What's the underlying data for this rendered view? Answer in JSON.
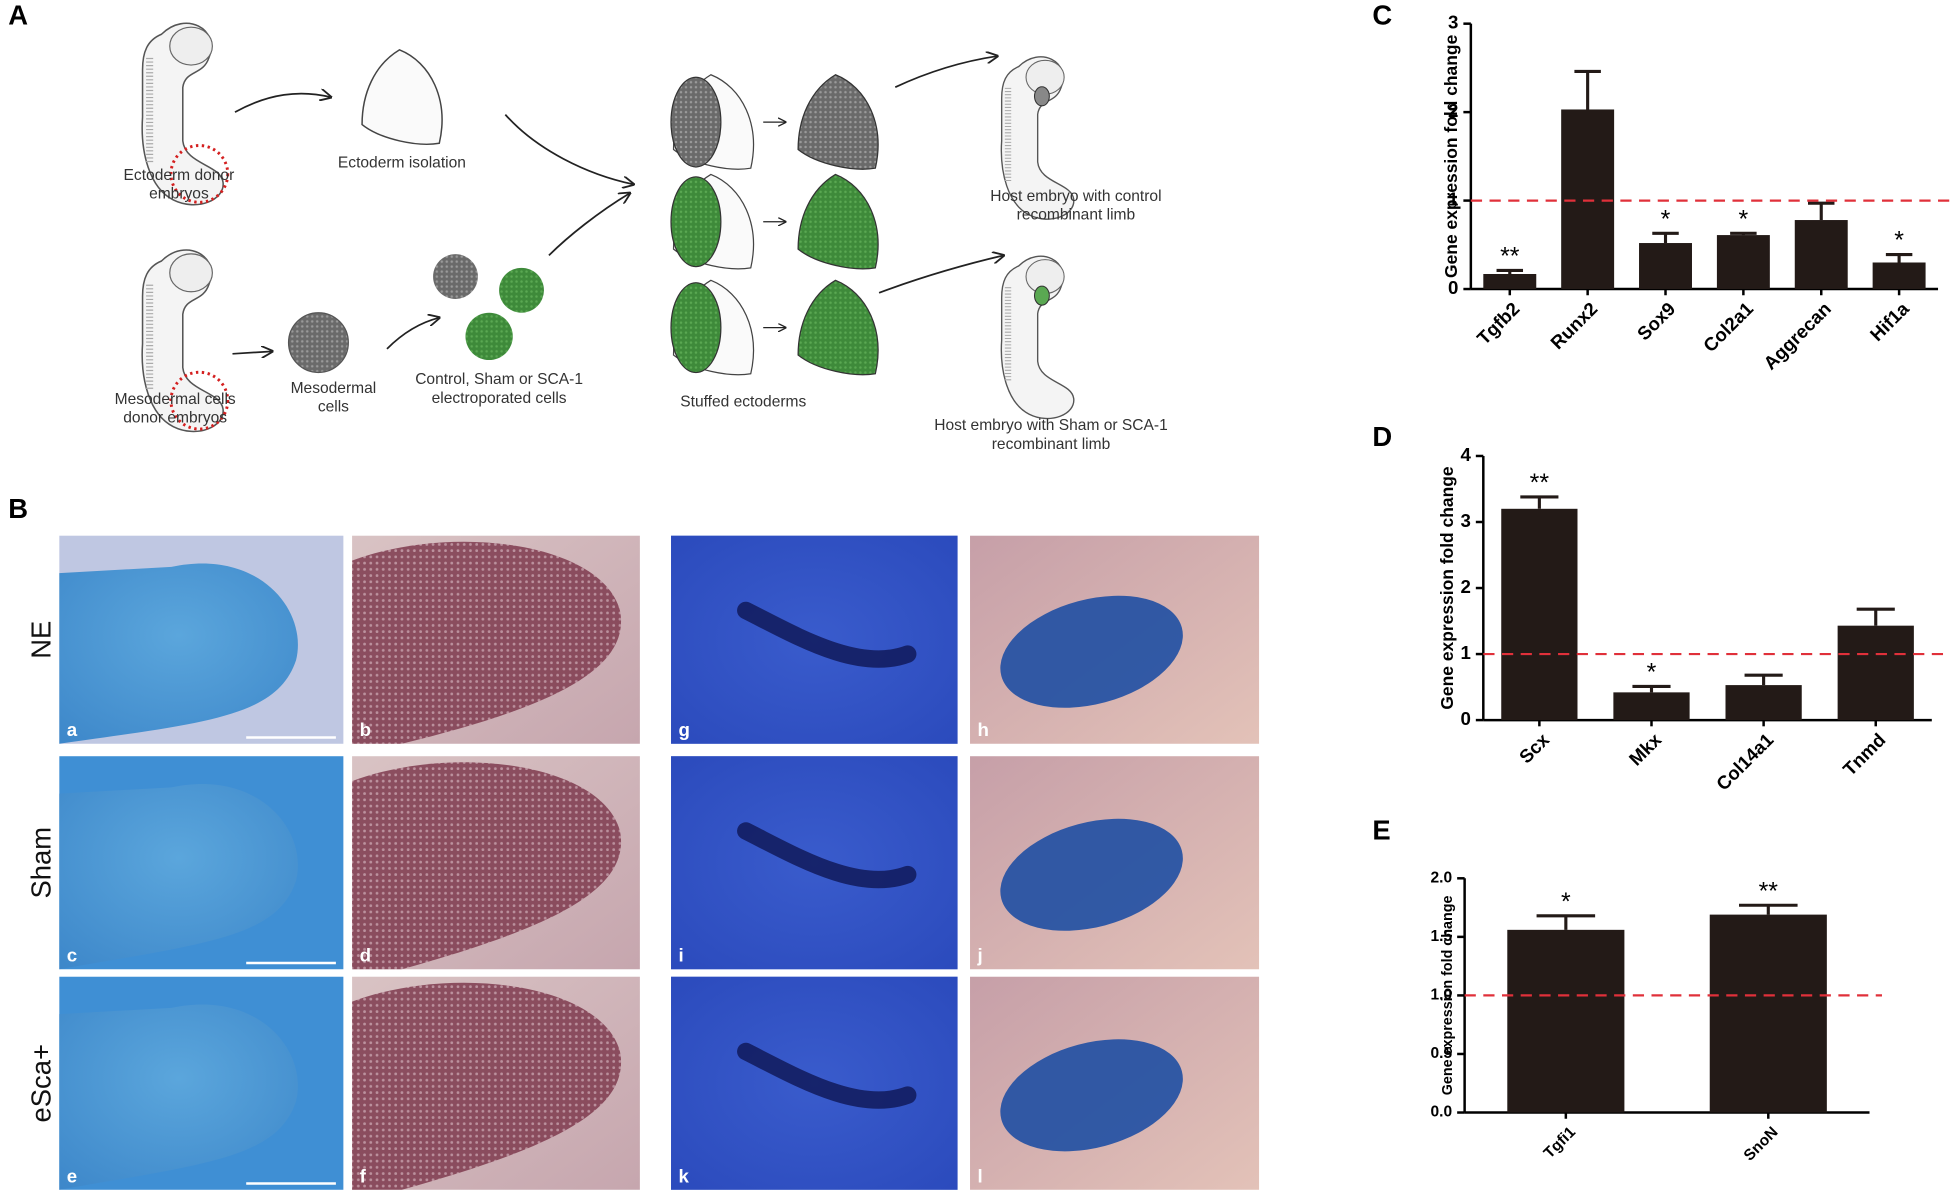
{
  "chart_data": [
    {
      "type": "bar",
      "panel": "C",
      "ylabel": "Gene expression fold change",
      "categories": [
        "Tgfb2",
        "Runx2",
        "Sox9",
        "Col2a1",
        "Aggrecan",
        "Hif1a"
      ],
      "values": [
        0.17,
        2.03,
        0.52,
        0.61,
        0.78,
        0.3
      ],
      "errors": [
        0.04,
        0.43,
        0.11,
        0.02,
        0.19,
        0.09
      ],
      "annotations": [
        "**",
        null,
        "*",
        "*",
        null,
        "*"
      ],
      "color": "#231a17",
      "ref_line": 1,
      "ref_color": "#e0303a",
      "ylim": [
        0,
        3
      ],
      "yticks": [
        0,
        1,
        2,
        3
      ]
    },
    {
      "type": "bar",
      "panel": "D",
      "ylabel": "Gene expression fold change",
      "categories": [
        "Scx",
        "Mkx",
        "Col14a1",
        "Tnmd"
      ],
      "values": [
        3.2,
        0.42,
        0.53,
        1.43
      ],
      "errors": [
        0.18,
        0.09,
        0.15,
        0.25
      ],
      "annotations": [
        "**",
        "*",
        null,
        null
      ],
      "color": "#231a17",
      "ref_line": 1,
      "ref_color": "#e0303a",
      "ylim": [
        0,
        4
      ],
      "yticks": [
        0,
        1,
        2,
        3,
        4
      ]
    },
    {
      "type": "bar",
      "panel": "E",
      "ylabel": "Gene expression fold change",
      "categories": [
        "Tgfi1",
        "SnoN"
      ],
      "values": [
        1.56,
        1.69
      ],
      "errors": [
        0.12,
        0.08
      ],
      "annotations": [
        "*",
        "**"
      ],
      "color": "#231a17",
      "ref_line": 1,
      "ref_color": "#e0303a",
      "ylim": [
        0,
        2
      ],
      "yticks": [
        {
          "value": 0,
          "label": "0.0"
        },
        0.5,
        {
          "value": 1,
          "label": "1.0"
        },
        1.5,
        {
          "value": 2,
          "label": "2.0"
        }
      ]
    }
  ],
  "figure": {
    "panel_a": "A",
    "panel_b": "B",
    "schematic": {
      "labels": [
        {
          "lines": [
            "Ectoderm donor",
            "embryos"
          ]
        },
        {
          "lines": [
            "Ectoderm isolation"
          ]
        },
        {
          "lines": [
            "Mesodermal cells",
            "donor embryos"
          ]
        },
        {
          "lines": [
            "Mesodermal",
            "cells"
          ]
        },
        {
          "lines": [
            "Control, Sham or SCA-1",
            "electroporated cells"
          ]
        },
        {
          "lines": [
            "Stuffed ectoderms"
          ]
        },
        {
          "lines": [
            "Host embryo with control",
            "recombinant limb"
          ]
        },
        {
          "lines": [
            "Host embryo with Sham or SCA-1",
            "recombinant limb"
          ]
        }
      ]
    },
    "micrographs": {
      "rows": [
        "NE",
        "Sham",
        "eSca+"
      ],
      "letters": [
        [
          "a",
          "b",
          "g",
          "h"
        ],
        [
          "c",
          "d",
          "i",
          "j"
        ],
        [
          "e",
          "f",
          "k",
          "l"
        ]
      ]
    }
  }
}
